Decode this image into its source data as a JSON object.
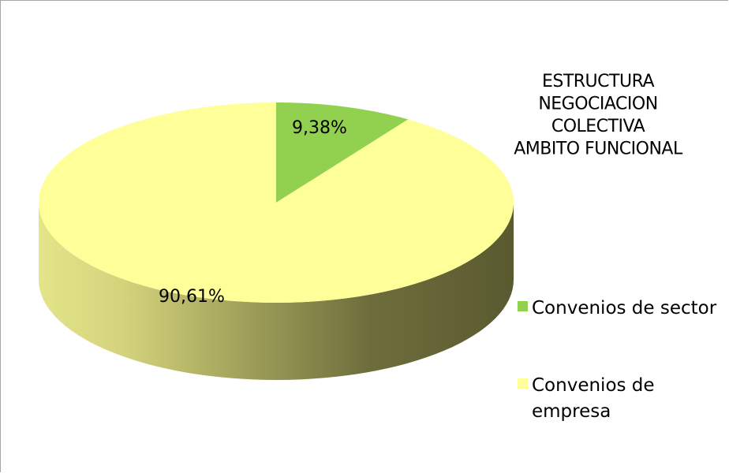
{
  "chart_data": {
    "type": "pie",
    "title_lines": [
      "ESTRUCTURA",
      "NEGOCIACION",
      "COLECTIVA",
      "AMBITO FUNCIONAL"
    ],
    "slices": [
      {
        "label_lines": [
          "Convenios de sector"
        ],
        "value": 9.38,
        "data_label": "9,38%",
        "color": "#92d050"
      },
      {
        "label_lines": [
          "Convenios de",
          "empresa"
        ],
        "value": 90.61,
        "data_label": "90,61%",
        "color": "#ffff99"
      }
    ],
    "legend_position": "right",
    "three_d": true
  }
}
